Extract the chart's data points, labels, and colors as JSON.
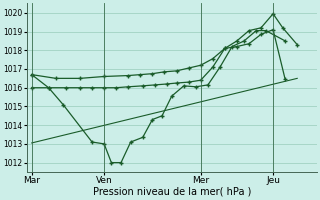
{
  "xlabel": "Pression niveau de la mer( hPa )",
  "bg_color": "#cceee8",
  "grid_color": "#99ccbb",
  "line_color": "#1a5c2a",
  "ylim": [
    1011.5,
    1020.5
  ],
  "yticks": [
    1012,
    1013,
    1014,
    1015,
    1016,
    1017,
    1018,
    1019,
    1020
  ],
  "day_labels": [
    "Mar",
    "Ven",
    "Mer",
    "Jeu"
  ],
  "day_positions": [
    0,
    3,
    7,
    10
  ],
  "xlim": [
    -0.2,
    11.8
  ],
  "line1_x": [
    0,
    0.7,
    1.3,
    2.5,
    3.0,
    3.3,
    3.7,
    4.1,
    4.6,
    5.0,
    5.4,
    5.8,
    6.3,
    6.8,
    7.3,
    7.8,
    8.3,
    8.8,
    9.3,
    9.7,
    10.5
  ],
  "line1_y": [
    1016.7,
    1016.0,
    1015.1,
    1013.1,
    1013.0,
    1012.0,
    1012.0,
    1013.1,
    1013.35,
    1014.3,
    1014.5,
    1015.55,
    1016.1,
    1016.05,
    1016.15,
    1017.1,
    1018.2,
    1018.5,
    1019.05,
    1019.05,
    1018.5
  ],
  "line2_x": [
    0,
    0.7,
    1.4,
    2.0,
    2.5,
    3.0,
    3.5,
    4.0,
    4.6,
    5.1,
    5.6,
    6.0,
    6.5,
    7.0,
    7.5,
    8.0,
    8.5,
    9.0,
    9.5,
    10.0,
    10.5
  ],
  "line2_y": [
    1016.0,
    1016.0,
    1016.0,
    1016.0,
    1016.0,
    1016.0,
    1016.0,
    1016.05,
    1016.1,
    1016.15,
    1016.2,
    1016.25,
    1016.3,
    1016.4,
    1017.1,
    1018.1,
    1018.2,
    1018.35,
    1018.85,
    1019.1,
    1016.45
  ],
  "line3_x": [
    0,
    11.0
  ],
  "line3_y": [
    1013.05,
    1016.5
  ],
  "line4_x": [
    0,
    1.0,
    2.0,
    3.0,
    4.0,
    4.5,
    5.0,
    5.5,
    6.0,
    6.5,
    7.0,
    7.5,
    8.0,
    8.5,
    9.0,
    9.5,
    10.0,
    10.4,
    11.0
  ],
  "line4_y": [
    1016.7,
    1016.5,
    1016.5,
    1016.6,
    1016.65,
    1016.7,
    1016.75,
    1016.85,
    1016.9,
    1017.05,
    1017.2,
    1017.55,
    1018.1,
    1018.5,
    1019.05,
    1019.2,
    1019.95,
    1019.2,
    1018.3
  ]
}
